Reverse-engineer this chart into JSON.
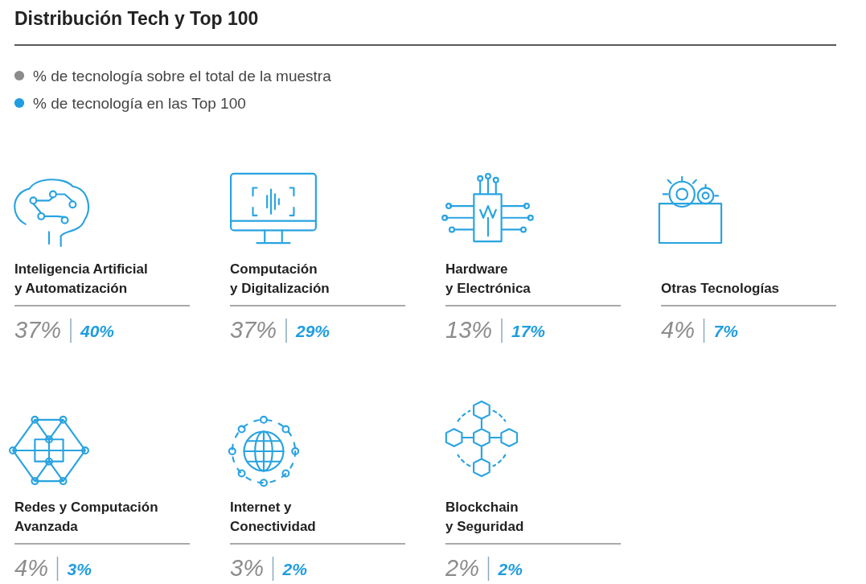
{
  "chart_data": {
    "type": "other",
    "title": "Distribución Tech y Top 100",
    "legend": "top left",
    "categories": [
      "Inteligencia Artificial\ny Automatización",
      "Computación\ny Digitalización",
      "Hardware\ny Electrónica",
      "Otras Tecnologías",
      "Redes y Computación\nAvanzada",
      "Internet y\nConectividad",
      "Blockchain\ny Seguridad"
    ],
    "series": [
      {
        "name": "% de tecnología sobre el total de la muestra",
        "color": "#8c8c8c",
        "values": [
          37,
          37,
          13,
          4,
          4,
          3,
          2
        ],
        "value_labels": [
          "37%",
          "37%",
          "13%",
          "4%",
          "4%",
          "3%",
          "2%"
        ]
      },
      {
        "name": "% de tecnología en las Top 100",
        "color": "#1f9de0",
        "values": [
          40,
          29,
          17,
          7,
          3,
          2,
          2
        ],
        "value_labels": [
          "40%",
          "29%",
          "17%",
          "7%",
          "3%",
          "2%",
          "2%"
        ]
      }
    ]
  }
}
